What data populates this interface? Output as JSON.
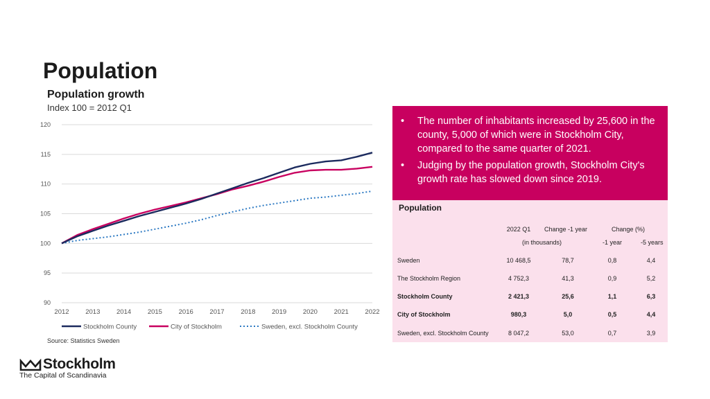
{
  "page": {
    "title": "Population",
    "subtitle": "Population growth",
    "index_note": "Index 100 = 2012 Q1",
    "source": "Source: Statistics Sweden"
  },
  "logo": {
    "name": "Stockholm",
    "tagline": "The Capital of Scandinavia"
  },
  "callout": {
    "bullets": [
      "The number of inhabitants increased by 25,600 in the county, 5,000 of which were in Stockholm City, compared to the same quarter of 2021.",
      "Judging by the population growth, Stockholm City's growth rate has slowed down since 2019."
    ]
  },
  "table": {
    "title": "Population",
    "header": {
      "col1": "2022 Q1",
      "col2": "Change -1 year",
      "col3": "Change (%)"
    },
    "subheader": {
      "col2": "(in thousands)",
      "col3a": "-1 year",
      "col3b": "-5 years"
    },
    "rows": [
      {
        "label": "Sweden",
        "q1": "10 468,5",
        "change": "78,7",
        "pct1": "0,8",
        "pct5": "4,4"
      },
      {
        "label": "The Stockholm Region",
        "q1": "4 752,3",
        "change": "41,3",
        "pct1": "0,9",
        "pct5": "5,2"
      },
      {
        "label": "Stockholm County",
        "q1": "2 421,3",
        "change": "25,6",
        "pct1": "1,1",
        "pct5": "6,3"
      },
      {
        "label": "City of Stockholm",
        "q1": "980,3",
        "change": "5,0",
        "pct1": "0,5",
        "pct5": "4,4"
      },
      {
        "label": "Sweden, excl. Stockholm County",
        "q1": "8 047,2",
        "change": "53,0",
        "pct1": "0,7",
        "pct5": "3,9"
      }
    ]
  },
  "chart_data": {
    "type": "line",
    "title": "Population growth",
    "subtitle": "Index 100 = 2012 Q1",
    "xlabel": "",
    "ylabel": "",
    "xlim": [
      2012,
      2022
    ],
    "ylim": [
      90,
      120
    ],
    "yticks": [
      90,
      95,
      100,
      105,
      110,
      115,
      120
    ],
    "xticks": [
      "2012",
      "2013",
      "2014",
      "2015",
      "2016",
      "2017",
      "2018",
      "2019",
      "2020",
      "2021",
      "2022"
    ],
    "grid": "horizontal",
    "legend_position": "bottom",
    "x": [
      2012,
      2012.5,
      2013,
      2013.5,
      2014,
      2014.5,
      2015,
      2015.5,
      2016,
      2016.5,
      2017,
      2017.5,
      2018,
      2018.5,
      2019,
      2019.5,
      2020,
      2020.5,
      2021,
      2021.5,
      2022
    ],
    "series": [
      {
        "name": "Stockholm County",
        "color": "#1b2a5e",
        "style": "solid",
        "values": [
          100.0,
          101.2,
          102.1,
          103.0,
          103.8,
          104.6,
          105.3,
          106.0,
          106.7,
          107.5,
          108.4,
          109.3,
          110.2,
          111.0,
          111.9,
          112.8,
          113.4,
          113.8,
          114.0,
          114.6,
          115.3
        ]
      },
      {
        "name": "City of Stockholm",
        "color": "#c8005f",
        "style": "solid",
        "values": [
          100.0,
          101.4,
          102.4,
          103.3,
          104.2,
          105.0,
          105.7,
          106.3,
          106.9,
          107.6,
          108.3,
          109.1,
          109.7,
          110.4,
          111.2,
          111.9,
          112.3,
          112.4,
          112.4,
          112.6,
          112.9
        ]
      },
      {
        "name": "Sweden, excl. Stockholm County",
        "color": "#2a78c2",
        "style": "dotted",
        "values": [
          100.0,
          100.5,
          100.8,
          101.1,
          101.5,
          101.9,
          102.4,
          102.9,
          103.4,
          104.0,
          104.7,
          105.3,
          105.9,
          106.4,
          106.8,
          107.2,
          107.6,
          107.8,
          108.1,
          108.4,
          108.8
        ]
      }
    ]
  }
}
